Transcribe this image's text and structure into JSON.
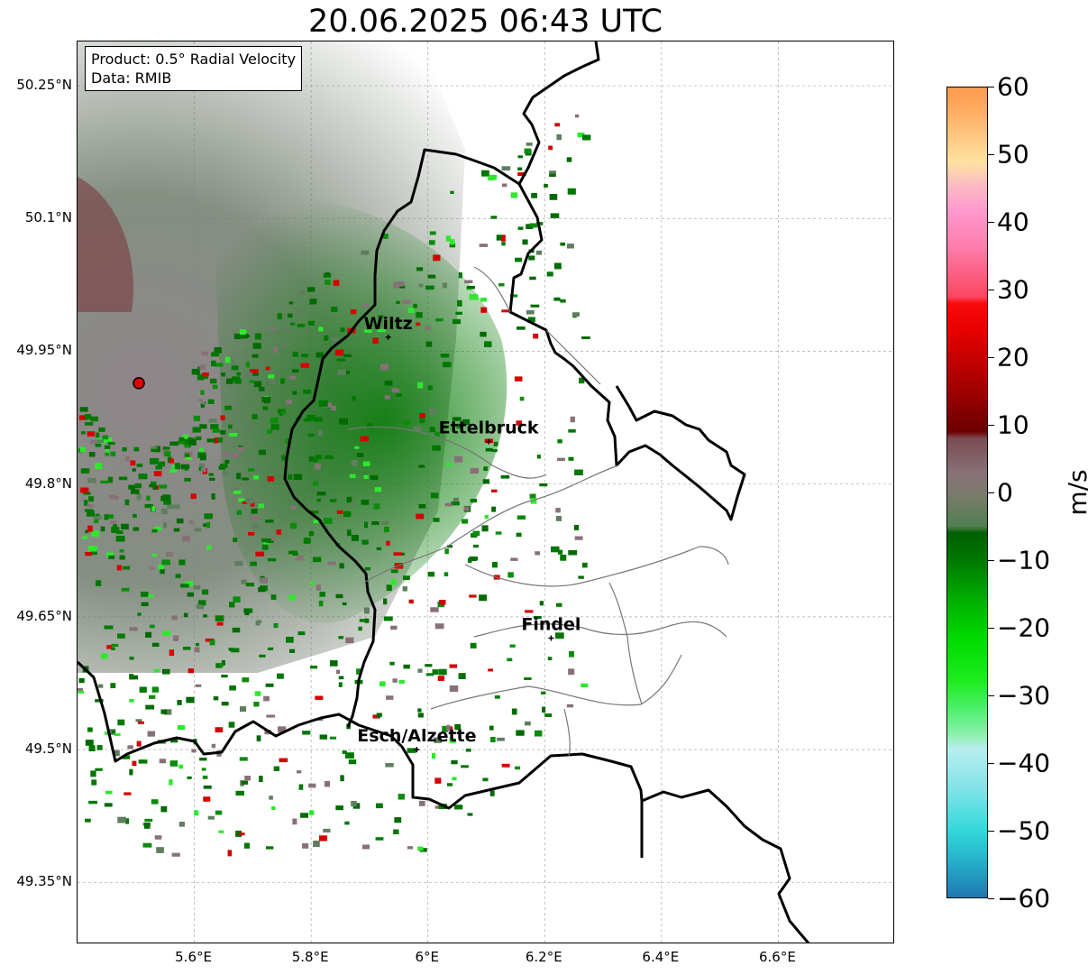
{
  "title": "20.06.2025 06:43 UTC",
  "info": {
    "product": "Product: 0.5° Radial Velocity",
    "data": "Data: RMIB"
  },
  "map": {
    "lon_range": [
      5.4,
      6.8
    ],
    "lat_range": [
      49.28,
      50.3
    ],
    "lat_ticks": [
      {
        "value": 50.25,
        "label": "50.25°N"
      },
      {
        "value": 50.1,
        "label": "50.1°N"
      },
      {
        "value": 49.95,
        "label": "49.95°N"
      },
      {
        "value": 49.8,
        "label": "49.8°N"
      },
      {
        "value": 49.65,
        "label": "49.65°N"
      },
      {
        "value": 49.5,
        "label": "49.5°N"
      },
      {
        "value": 49.35,
        "label": "49.35°N"
      }
    ],
    "lon_ticks": [
      {
        "value": 5.6,
        "label": "5.6°E"
      },
      {
        "value": 5.8,
        "label": "5.8°E"
      },
      {
        "value": 6.0,
        "label": "6°E"
      },
      {
        "value": 6.2,
        "label": "6.2°E"
      },
      {
        "value": 6.4,
        "label": "6.4°E"
      },
      {
        "value": 6.6,
        "label": "6.6°E"
      }
    ],
    "grid": true,
    "radar_site": {
      "lon": 5.505,
      "lat": 49.914
    },
    "cities": [
      {
        "name": "Wiltz",
        "lon": 5.932,
        "lat": 49.966
      },
      {
        "name": "Ettelbruck",
        "lon": 6.104,
        "lat": 49.848
      },
      {
        "name": "Findel",
        "lon": 6.211,
        "lat": 49.626
      },
      {
        "name": "Esch/Alzette",
        "lon": 5.981,
        "lat": 49.5
      }
    ]
  },
  "colorbar": {
    "unit": "m/s",
    "range": [
      -60,
      60
    ],
    "ticks": [
      {
        "value": 60,
        "label": "60"
      },
      {
        "value": 50,
        "label": "50"
      },
      {
        "value": 40,
        "label": "40"
      },
      {
        "value": 30,
        "label": "30"
      },
      {
        "value": 20,
        "label": "20"
      },
      {
        "value": 10,
        "label": "10"
      },
      {
        "value": 0,
        "label": "0"
      },
      {
        "value": -10,
        "label": "−10"
      },
      {
        "value": -20,
        "label": "−20"
      },
      {
        "value": -30,
        "label": "−30"
      },
      {
        "value": -40,
        "label": "−40"
      },
      {
        "value": -50,
        "label": "−50"
      },
      {
        "value": -60,
        "label": "−60"
      }
    ],
    "stops": [
      {
        "value": -60,
        "color": "#1f78b4"
      },
      {
        "value": -54,
        "color": "#26b6cc"
      },
      {
        "value": -50,
        "color": "#33d9dc"
      },
      {
        "value": -44,
        "color": "#7fe3e6"
      },
      {
        "value": -38,
        "color": "#b9eef0"
      },
      {
        "value": -36,
        "color": "#8ff0b0"
      },
      {
        "value": -32,
        "color": "#4cf06c"
      },
      {
        "value": -28,
        "color": "#1eec1e"
      },
      {
        "value": -22,
        "color": "#00dd00"
      },
      {
        "value": -16,
        "color": "#00b000"
      },
      {
        "value": -10,
        "color": "#007800"
      },
      {
        "value": -6,
        "color": "#005f00"
      },
      {
        "value": -5,
        "color": "#517e51"
      },
      {
        "value": 0,
        "color": "#7d7b6e"
      },
      {
        "value": 3,
        "color": "#877177"
      },
      {
        "value": 8,
        "color": "#7b4b52"
      },
      {
        "value": 9,
        "color": "#6b0000"
      },
      {
        "value": 16,
        "color": "#a80000"
      },
      {
        "value": 24,
        "color": "#e60000"
      },
      {
        "value": 28,
        "color": "#fa0a0a"
      },
      {
        "value": 29,
        "color": "#fb4660"
      },
      {
        "value": 36,
        "color": "#fe7aa8"
      },
      {
        "value": 42,
        "color": "#ff9bd0"
      },
      {
        "value": 46,
        "color": "#fcc0c0"
      },
      {
        "value": 49,
        "color": "#fde3a0"
      },
      {
        "value": 56,
        "color": "#ffb066"
      },
      {
        "value": 60,
        "color": "#ff9a4c"
      }
    ]
  }
}
